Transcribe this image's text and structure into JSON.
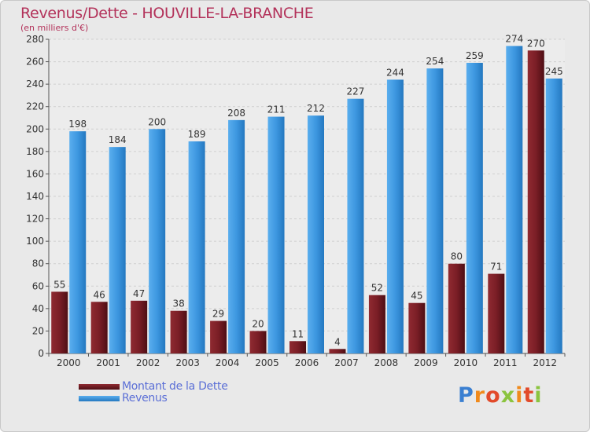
{
  "title": "Revenus/Dette - HOUVILLE-LA-BRANCHE",
  "subtitle": "(en milliers d'€)",
  "logo_text": "Proxiti",
  "chart_data": {
    "type": "bar",
    "categories": [
      "2000",
      "2001",
      "2002",
      "2003",
      "2004",
      "2005",
      "2006",
      "2007",
      "2008",
      "2009",
      "2010",
      "2011",
      "2012"
    ],
    "series": [
      {
        "name": "Montant de la Dette",
        "color": "#7a1e26",
        "values": [
          55,
          46,
          47,
          38,
          29,
          20,
          11,
          4,
          52,
          45,
          80,
          71,
          270
        ]
      },
      {
        "name": "Revenus",
        "color": "#3d97e0",
        "values": [
          198,
          184,
          200,
          189,
          208,
          211,
          212,
          227,
          244,
          254,
          259,
          274,
          245
        ]
      }
    ],
    "yticks": [
      0,
      20,
      40,
      60,
      80,
      100,
      120,
      140,
      160,
      180,
      200,
      220,
      240,
      260,
      280
    ],
    "ylim": [
      0,
      280
    ],
    "grid": true,
    "legend": "bottom-left"
  }
}
